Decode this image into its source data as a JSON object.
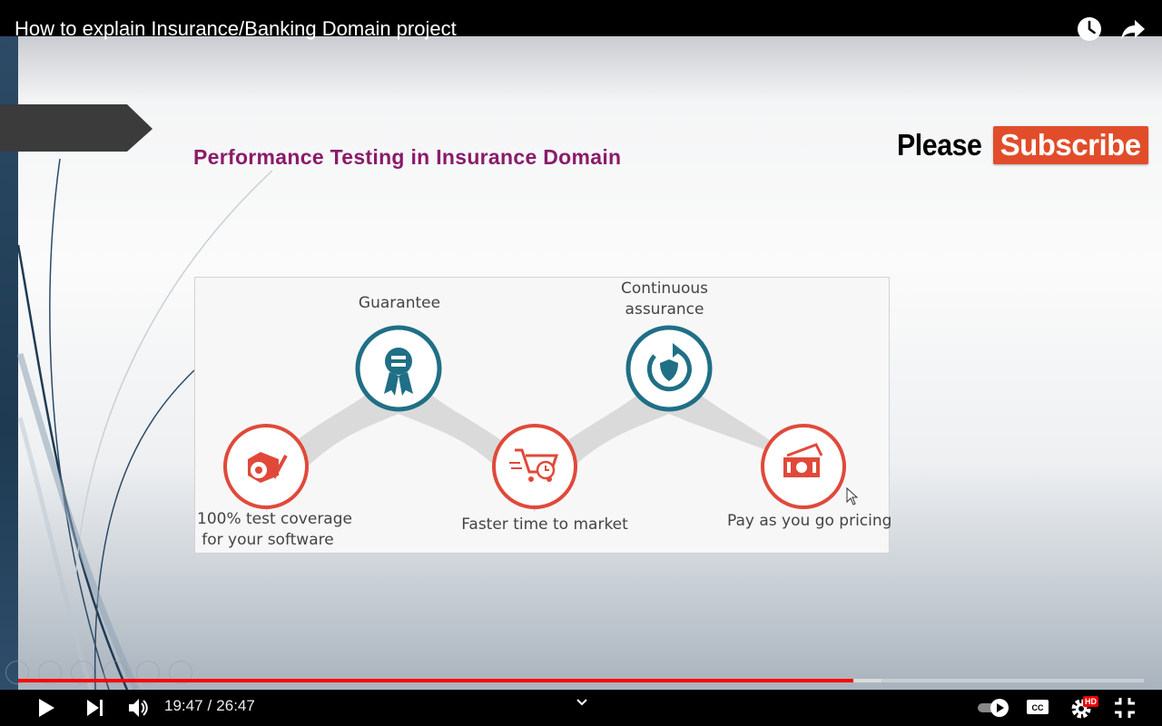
{
  "player": {
    "title": "How to explain Insurance/Banking Domain project",
    "icons": {
      "watch_later": "clock-icon",
      "share": "share-arrow-icon"
    }
  },
  "slide": {
    "title": "Performance Testing in Insurance Domain",
    "subscribe": {
      "please": "Please",
      "word": "Subscribe"
    },
    "diagram": {
      "items": [
        {
          "label_lines": [
            "100% test coverage",
            "for your software"
          ],
          "icon": "target-check-icon",
          "color": "#e0493a"
        },
        {
          "label_lines": [
            "Guarantee"
          ],
          "icon": "award-badge-icon",
          "color": "#1f6f86"
        },
        {
          "label_lines": [
            "Faster time to market"
          ],
          "icon": "shopping-cart-clock-icon",
          "color": "#e0493a"
        },
        {
          "label_lines": [
            "Continuous",
            "assurance"
          ],
          "icon": "shield-refresh-icon",
          "color": "#1f6f86"
        },
        {
          "label_lines": [
            "Pay as you go pricing"
          ],
          "icon": "money-bills-icon",
          "color": "#e0493a"
        }
      ]
    }
  },
  "controls": {
    "current_time": "19:47",
    "duration": "26:47",
    "separator": "/",
    "played_fraction": 0.742,
    "buffered_fraction": 0.767,
    "hd_badge": "HD",
    "colors": {
      "progress_played": "#ff0000",
      "hd_badge": "#ee0000"
    }
  }
}
